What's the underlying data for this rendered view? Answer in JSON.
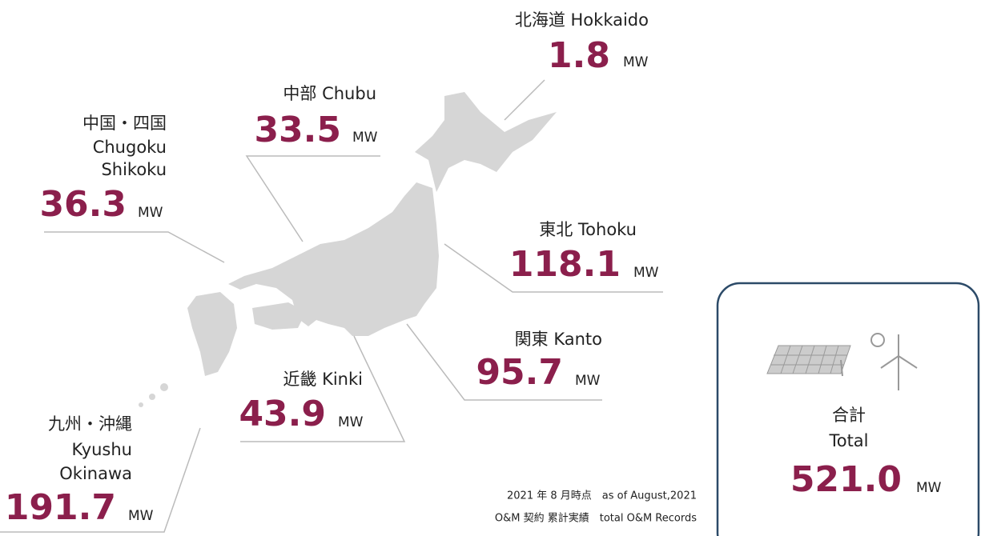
{
  "regions": [
    {
      "jp": "北海道",
      "en": "Hokkaido",
      "value": "1.8",
      "unit": "MW"
    },
    {
      "jp": "中部",
      "en": "Chubu",
      "value": "33.5",
      "unit": "MW"
    },
    {
      "jp": "中国・四国",
      "en": "Chugoku",
      "en2": "Shikoku",
      "value": "36.3",
      "unit": "MW"
    },
    {
      "jp": "東北",
      "en": "Tohoku",
      "value": "118.1",
      "unit": "MW"
    },
    {
      "jp": "関東",
      "en": "Kanto",
      "value": "95.7",
      "unit": "MW"
    },
    {
      "jp": "近畿",
      "en": "Kinki",
      "value": "43.9",
      "unit": "MW"
    },
    {
      "jp": "九州・沖縄",
      "en": "Kyushu",
      "en2": "Okinawa",
      "value": "191.7",
      "unit": "MW"
    }
  ],
  "total": {
    "jp": "合計",
    "en": "Total",
    "value": "521.0",
    "unit": "MW"
  },
  "footnote": [
    "2021 年 8 月時点　as of August,2021",
    "O&M 契約 累計実績　total O&M Records"
  ]
}
